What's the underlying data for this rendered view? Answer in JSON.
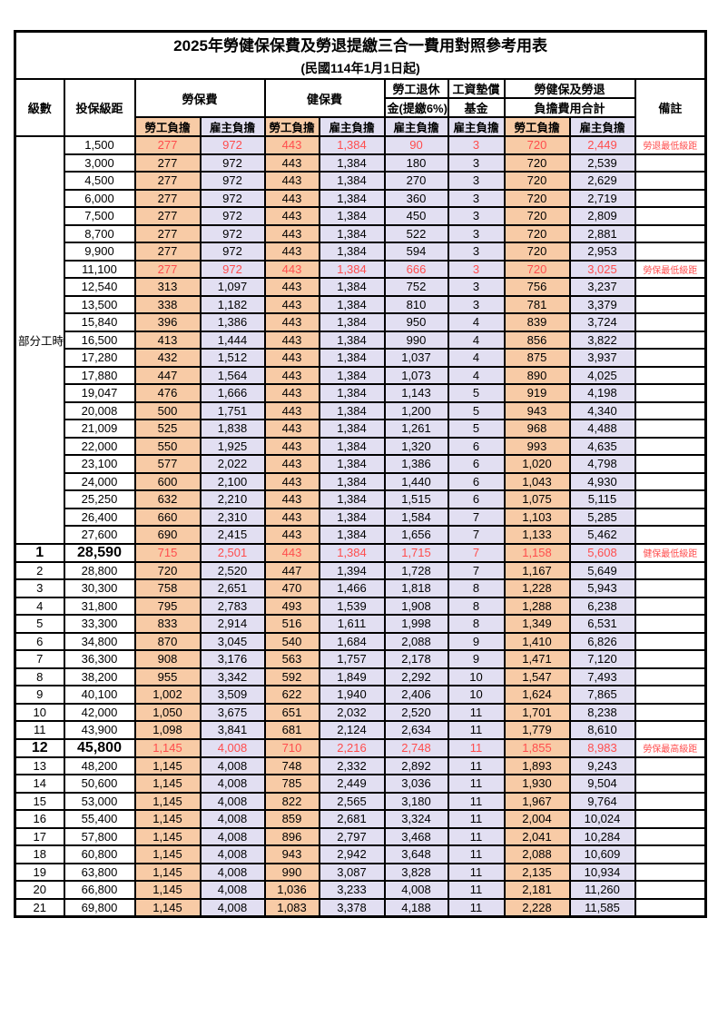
{
  "page": {
    "title": "2025年勞健保保費及勞退提繳三合一費用對照參考用表",
    "subtitle": "(民國114年1月1日起)"
  },
  "colors": {
    "employee_bg": "#F8CBA6",
    "employer_bg": "#E2DFF2",
    "highlight_red": "#FF4D4D",
    "border": "#000000"
  },
  "header": {
    "level": "級數",
    "bracket": "投保級距",
    "labor": "勞保費",
    "health": "健保費",
    "pension_l1": "勞工退休",
    "pension_l2": "金(提繳6%)",
    "wage_l1": "工資墊償",
    "wage_l2": "基金",
    "total_l1": "勞健保及勞退",
    "total_l2": "負擔費用合計",
    "note": "備註",
    "employee": "勞工負擔",
    "employer": "雇主負擔"
  },
  "group": {
    "label": "部分工時",
    "rowspan": 23
  },
  "rows": [
    {
      "bracket": "1,500",
      "values": [
        "277",
        "972",
        "443",
        "1,384",
        "90",
        "3",
        "720",
        "2,449"
      ],
      "note": "勞退最低級距",
      "red": true
    },
    {
      "bracket": "3,000",
      "values": [
        "277",
        "972",
        "443",
        "1,384",
        "180",
        "3",
        "720",
        "2,539"
      ]
    },
    {
      "bracket": "4,500",
      "values": [
        "277",
        "972",
        "443",
        "1,384",
        "270",
        "3",
        "720",
        "2,629"
      ]
    },
    {
      "bracket": "6,000",
      "values": [
        "277",
        "972",
        "443",
        "1,384",
        "360",
        "3",
        "720",
        "2,719"
      ]
    },
    {
      "bracket": "7,500",
      "values": [
        "277",
        "972",
        "443",
        "1,384",
        "450",
        "3",
        "720",
        "2,809"
      ]
    },
    {
      "bracket": "8,700",
      "values": [
        "277",
        "972",
        "443",
        "1,384",
        "522",
        "3",
        "720",
        "2,881"
      ]
    },
    {
      "bracket": "9,900",
      "values": [
        "277",
        "972",
        "443",
        "1,384",
        "594",
        "3",
        "720",
        "2,953"
      ]
    },
    {
      "bracket": "11,100",
      "values": [
        "277",
        "972",
        "443",
        "1,384",
        "666",
        "3",
        "720",
        "3,025"
      ],
      "note": "勞保最低級距",
      "red": true
    },
    {
      "bracket": "12,540",
      "values": [
        "313",
        "1,097",
        "443",
        "1,384",
        "752",
        "3",
        "756",
        "3,237"
      ]
    },
    {
      "bracket": "13,500",
      "values": [
        "338",
        "1,182",
        "443",
        "1,384",
        "810",
        "3",
        "781",
        "3,379"
      ]
    },
    {
      "bracket": "15,840",
      "values": [
        "396",
        "1,386",
        "443",
        "1,384",
        "950",
        "4",
        "839",
        "3,724"
      ]
    },
    {
      "bracket": "16,500",
      "values": [
        "413",
        "1,444",
        "443",
        "1,384",
        "990",
        "4",
        "856",
        "3,822"
      ]
    },
    {
      "bracket": "17,280",
      "values": [
        "432",
        "1,512",
        "443",
        "1,384",
        "1,037",
        "4",
        "875",
        "3,937"
      ]
    },
    {
      "bracket": "17,880",
      "values": [
        "447",
        "1,564",
        "443",
        "1,384",
        "1,073",
        "4",
        "890",
        "4,025"
      ]
    },
    {
      "bracket": "19,047",
      "values": [
        "476",
        "1,666",
        "443",
        "1,384",
        "1,143",
        "5",
        "919",
        "4,198"
      ]
    },
    {
      "bracket": "20,008",
      "values": [
        "500",
        "1,751",
        "443",
        "1,384",
        "1,200",
        "5",
        "943",
        "4,340"
      ]
    },
    {
      "bracket": "21,009",
      "values": [
        "525",
        "1,838",
        "443",
        "1,384",
        "1,261",
        "5",
        "968",
        "4,488"
      ]
    },
    {
      "bracket": "22,000",
      "values": [
        "550",
        "1,925",
        "443",
        "1,384",
        "1,320",
        "6",
        "993",
        "4,635"
      ]
    },
    {
      "bracket": "23,100",
      "values": [
        "577",
        "2,022",
        "443",
        "1,384",
        "1,386",
        "6",
        "1,020",
        "4,798"
      ]
    },
    {
      "bracket": "24,000",
      "values": [
        "600",
        "2,100",
        "443",
        "1,384",
        "1,440",
        "6",
        "1,043",
        "4,930"
      ]
    },
    {
      "bracket": "25,250",
      "values": [
        "632",
        "2,210",
        "443",
        "1,384",
        "1,515",
        "6",
        "1,075",
        "5,115"
      ]
    },
    {
      "bracket": "26,400",
      "values": [
        "660",
        "2,310",
        "443",
        "1,384",
        "1,584",
        "7",
        "1,103",
        "5,285"
      ]
    },
    {
      "bracket": "27,600",
      "values": [
        "690",
        "2,415",
        "443",
        "1,384",
        "1,656",
        "7",
        "1,133",
        "5,462"
      ]
    },
    {
      "level": "1",
      "bracket": "28,590",
      "values": [
        "715",
        "2,501",
        "443",
        "1,384",
        "1,715",
        "7",
        "1,158",
        "5,608"
      ],
      "note": "健保最低級距",
      "red": true,
      "big": true
    },
    {
      "level": "2",
      "bracket": "28,800",
      "values": [
        "720",
        "2,520",
        "447",
        "1,394",
        "1,728",
        "7",
        "1,167",
        "5,649"
      ]
    },
    {
      "level": "3",
      "bracket": "30,300",
      "values": [
        "758",
        "2,651",
        "470",
        "1,466",
        "1,818",
        "8",
        "1,228",
        "5,943"
      ]
    },
    {
      "level": "4",
      "bracket": "31,800",
      "values": [
        "795",
        "2,783",
        "493",
        "1,539",
        "1,908",
        "8",
        "1,288",
        "6,238"
      ]
    },
    {
      "level": "5",
      "bracket": "33,300",
      "values": [
        "833",
        "2,914",
        "516",
        "1,611",
        "1,998",
        "8",
        "1,349",
        "6,531"
      ]
    },
    {
      "level": "6",
      "bracket": "34,800",
      "values": [
        "870",
        "3,045",
        "540",
        "1,684",
        "2,088",
        "9",
        "1,410",
        "6,826"
      ]
    },
    {
      "level": "7",
      "bracket": "36,300",
      "values": [
        "908",
        "3,176",
        "563",
        "1,757",
        "2,178",
        "9",
        "1,471",
        "7,120"
      ]
    },
    {
      "level": "8",
      "bracket": "38,200",
      "values": [
        "955",
        "3,342",
        "592",
        "1,849",
        "2,292",
        "10",
        "1,547",
        "7,493"
      ]
    },
    {
      "level": "9",
      "bracket": "40,100",
      "values": [
        "1,002",
        "3,509",
        "622",
        "1,940",
        "2,406",
        "10",
        "1,624",
        "7,865"
      ]
    },
    {
      "level": "10",
      "bracket": "42,000",
      "values": [
        "1,050",
        "3,675",
        "651",
        "2,032",
        "2,520",
        "11",
        "1,701",
        "8,238"
      ]
    },
    {
      "level": "11",
      "bracket": "43,900",
      "values": [
        "1,098",
        "3,841",
        "681",
        "2,124",
        "2,634",
        "11",
        "1,779",
        "8,610"
      ]
    },
    {
      "level": "12",
      "bracket": "45,800",
      "values": [
        "1,145",
        "4,008",
        "710",
        "2,216",
        "2,748",
        "11",
        "1,855",
        "8,983"
      ],
      "note": "勞保最高級距",
      "red": true,
      "big": true
    },
    {
      "level": "13",
      "bracket": "48,200",
      "values": [
        "1,145",
        "4,008",
        "748",
        "2,332",
        "2,892",
        "11",
        "1,893",
        "9,243"
      ]
    },
    {
      "level": "14",
      "bracket": "50,600",
      "values": [
        "1,145",
        "4,008",
        "785",
        "2,449",
        "3,036",
        "11",
        "1,930",
        "9,504"
      ]
    },
    {
      "level": "15",
      "bracket": "53,000",
      "values": [
        "1,145",
        "4,008",
        "822",
        "2,565",
        "3,180",
        "11",
        "1,967",
        "9,764"
      ]
    },
    {
      "level": "16",
      "bracket": "55,400",
      "values": [
        "1,145",
        "4,008",
        "859",
        "2,681",
        "3,324",
        "11",
        "2,004",
        "10,024"
      ]
    },
    {
      "level": "17",
      "bracket": "57,800",
      "values": [
        "1,145",
        "4,008",
        "896",
        "2,797",
        "3,468",
        "11",
        "2,041",
        "10,284"
      ]
    },
    {
      "level": "18",
      "bracket": "60,800",
      "values": [
        "1,145",
        "4,008",
        "943",
        "2,942",
        "3,648",
        "11",
        "2,088",
        "10,609"
      ]
    },
    {
      "level": "19",
      "bracket": "63,800",
      "values": [
        "1,145",
        "4,008",
        "990",
        "3,087",
        "3,828",
        "11",
        "2,135",
        "10,934"
      ]
    },
    {
      "level": "20",
      "bracket": "66,800",
      "values": [
        "1,145",
        "4,008",
        "1,036",
        "3,233",
        "4,008",
        "11",
        "2,181",
        "11,260"
      ]
    },
    {
      "level": "21",
      "bracket": "69,800",
      "values": [
        "1,145",
        "4,008",
        "1,083",
        "3,378",
        "4,188",
        "11",
        "2,228",
        "11,585"
      ]
    }
  ]
}
